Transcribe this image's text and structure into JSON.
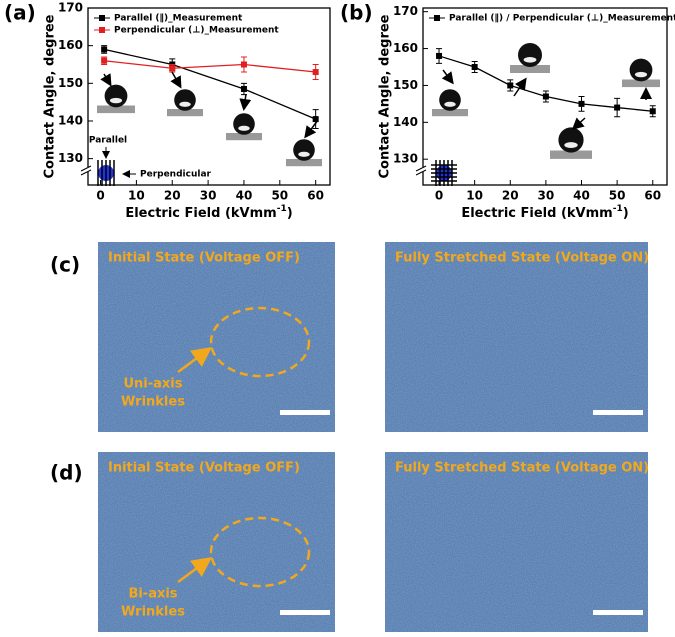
{
  "chart_data": [
    {
      "type": "line",
      "panel_label": "(a)",
      "ylabel": "Contact Angle, degree",
      "xlabel": [
        "Electric Field (kVmm",
        "-1",
        ")"
      ],
      "x": [
        1,
        20,
        40,
        60
      ],
      "series": [
        {
          "name": "Parallel (∥)_Measurement",
          "color": "#000000",
          "values": [
            159,
            155,
            148.5,
            140.5
          ],
          "errors": [
            1,
            1.5,
            1.5,
            2.5
          ]
        },
        {
          "name": "Perpendicular (⊥)_Measurement",
          "color": "#e02020",
          "values": [
            156,
            154,
            155,
            153
          ],
          "errors": [
            1,
            1,
            2,
            2
          ]
        }
      ],
      "xlim": [
        -3.5,
        64
      ],
      "ylim": [
        123,
        170
      ],
      "xticks": [
        0,
        10,
        20,
        30,
        40,
        50,
        60
      ],
      "yticks": [
        130,
        140,
        150,
        160,
        170
      ],
      "annotations": [
        "Parallel",
        "Perpendicular"
      ]
    },
    {
      "type": "line",
      "panel_label": "(b)",
      "ylabel": "Contact Angle, degree",
      "xlabel": [
        "Electric Field (kVmm",
        "-1",
        ")"
      ],
      "x": [
        0,
        10,
        20,
        30,
        40,
        50,
        60
      ],
      "series": [
        {
          "name": "Parallel (∥) / Perpendicular (⊥)_Measurement",
          "color": "#000000",
          "values": [
            158,
            155,
            150,
            147,
            145,
            144,
            143
          ],
          "errors": [
            2,
            1.5,
            1.5,
            1.5,
            2,
            2.5,
            1.5
          ]
        }
      ],
      "xlim": [
        -4.5,
        64
      ],
      "ylim": [
        123,
        171
      ],
      "xticks": [
        0,
        10,
        20,
        30,
        40,
        50,
        60
      ],
      "yticks": [
        130,
        140,
        150,
        160,
        170
      ]
    }
  ],
  "panels": [
    {
      "label": "(c)",
      "images": [
        {
          "caption": "Initial State (Voltage OFF)",
          "annotation": [
            "Uni-axis",
            "Wrinkles"
          ]
        },
        {
          "caption": "Fully Stretched State (Voltage ON)"
        }
      ]
    },
    {
      "label": "(d)",
      "images": [
        {
          "caption": "Initial State (Voltage OFF)",
          "annotation": [
            "Bi-axis",
            "Wrinkles"
          ]
        },
        {
          "caption": "Fully Stretched State (Voltage ON)"
        }
      ]
    }
  ]
}
